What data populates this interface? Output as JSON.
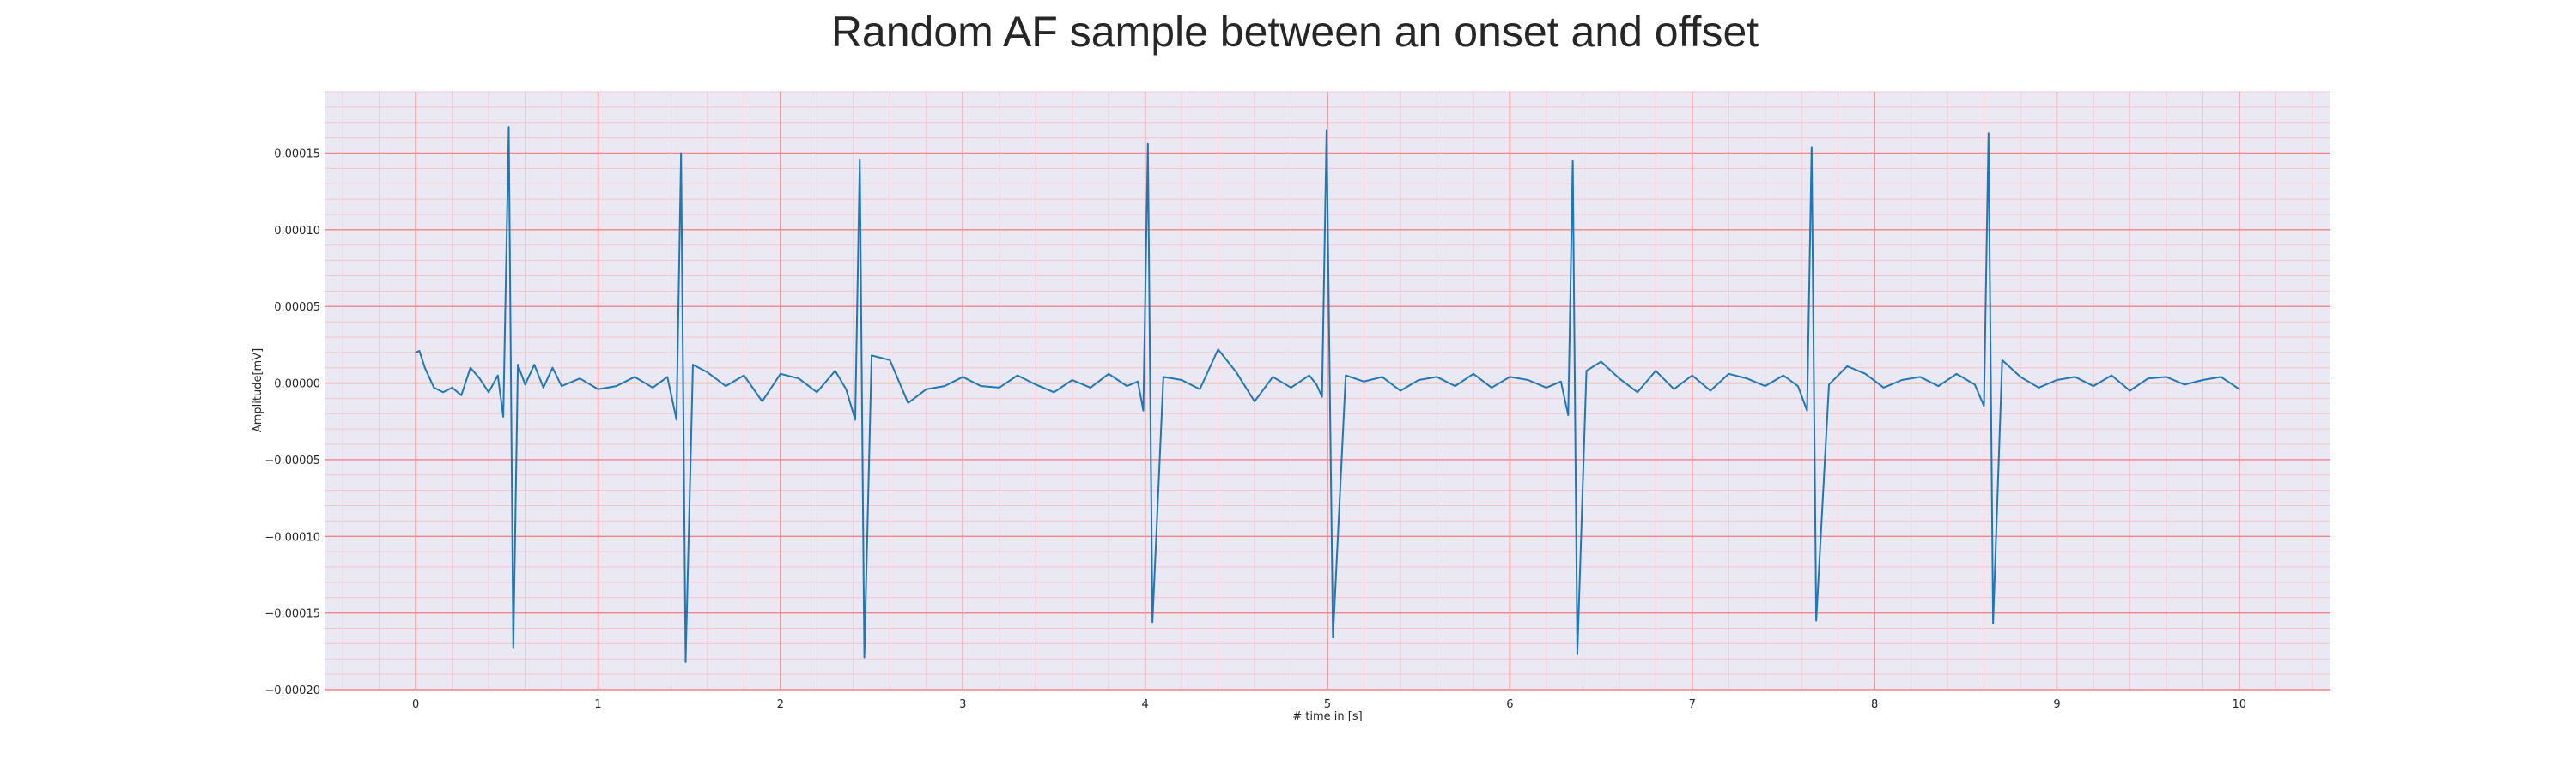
{
  "chart_data": {
    "type": "line",
    "title": "Random AF sample between an onset and offset",
    "xlabel": "# time in [s]",
    "ylabel": "Amplitude[mV]",
    "xlim": [
      -0.5,
      10.5
    ],
    "ylim": [
      -0.0002,
      0.00019
    ],
    "x_ticks": [
      0,
      1,
      2,
      3,
      4,
      5,
      6,
      7,
      8,
      9,
      10
    ],
    "x_tick_labels": [
      "0",
      "1",
      "2",
      "3",
      "4",
      "5",
      "6",
      "7",
      "8",
      "9",
      "10"
    ],
    "y_ticks": [
      -0.0002,
      -0.00015,
      -0.0001,
      -5e-05,
      0,
      5e-05,
      0.0001,
      0.00015
    ],
    "y_tick_labels": [
      "−0.00020",
      "−0.00015",
      "−0.00010",
      "−0.00005",
      "0.00000",
      "0.00005",
      "0.00010",
      "0.00015"
    ],
    "grid": true,
    "minor_grid": true,
    "colors": {
      "background": "#eae9f3",
      "major_grid": "#f08585",
      "minor_grid": "#f4c4cc",
      "line": "#1f77b4"
    },
    "series": [
      {
        "x": [
          0,
          0.02,
          0.05,
          0.1,
          0.15,
          0.2,
          0.25,
          0.3,
          0.35,
          0.4,
          0.45,
          0.48,
          0.51,
          0.535,
          0.56,
          0.6,
          0.65,
          0.7,
          0.75,
          0.8,
          0.9,
          1.0,
          1.1,
          1.2,
          1.3,
          1.38,
          1.43,
          1.455,
          1.48,
          1.52,
          1.6,
          1.7,
          1.8,
          1.9,
          2.0,
          2.1,
          2.2,
          2.3,
          2.36,
          2.41,
          2.435,
          2.46,
          2.5,
          2.6,
          2.7,
          2.8,
          2.9,
          3.0,
          3.1,
          3.2,
          3.3,
          3.4,
          3.5,
          3.6,
          3.7,
          3.8,
          3.9,
          3.96,
          3.99,
          4.015,
          4.04,
          4.1,
          4.2,
          4.3,
          4.4,
          4.5,
          4.6,
          4.7,
          4.8,
          4.9,
          4.94,
          4.97,
          4.995,
          5.03,
          5.1,
          5.2,
          5.3,
          5.4,
          5.5,
          5.6,
          5.7,
          5.8,
          5.9,
          6.0,
          6.1,
          6.2,
          6.28,
          6.32,
          6.345,
          6.37,
          6.42,
          6.5,
          6.6,
          6.7,
          6.8,
          6.9,
          7.0,
          7.1,
          7.2,
          7.3,
          7.4,
          7.5,
          7.58,
          7.63,
          7.655,
          7.68,
          7.75,
          7.85,
          7.95,
          8.05,
          8.15,
          8.25,
          8.35,
          8.45,
          8.55,
          8.6,
          8.625,
          8.65,
          8.7,
          8.8,
          8.9,
          9.0,
          9.1,
          9.2,
          9.3,
          9.4,
          9.5,
          9.6,
          9.7,
          9.8,
          9.9,
          10.0
        ],
        "y": [
          2e-05,
          2.1e-05,
          1e-05,
          -3e-06,
          -6e-06,
          -3e-06,
          -8e-06,
          1e-05,
          3e-06,
          -6e-06,
          5e-06,
          -2.2e-05,
          0.000167,
          -0.000173,
          1.2e-05,
          -1e-06,
          1.2e-05,
          -3e-06,
          1e-05,
          -2e-06,
          3e-06,
          -4e-06,
          -2e-06,
          4e-06,
          -3e-06,
          4e-06,
          -2.4e-05,
          0.00015,
          -0.000182,
          1.2e-05,
          7e-06,
          -2e-06,
          5e-06,
          -1.2e-05,
          6e-06,
          3e-06,
          -6e-06,
          8e-06,
          -4e-06,
          -2.4e-05,
          0.000146,
          -0.000179,
          1.8e-05,
          1.5e-05,
          -1.3e-05,
          -4e-06,
          -2e-06,
          4e-06,
          -2e-06,
          -3e-06,
          5e-06,
          -1e-06,
          -6e-06,
          2e-06,
          -3e-06,
          6e-06,
          -2e-06,
          1e-06,
          -1.8e-05,
          0.000156,
          -0.000156,
          4e-06,
          2e-06,
          -4e-06,
          2.2e-05,
          7e-06,
          -1.2e-05,
          4e-06,
          -3e-06,
          5e-06,
          -1e-06,
          -9e-06,
          0.000165,
          -0.000166,
          5e-06,
          1e-06,
          4e-06,
          -5e-06,
          2e-06,
          4e-06,
          -2e-06,
          6e-06,
          -3e-06,
          4e-06,
          2e-06,
          -3e-06,
          1e-06,
          -2.1e-05,
          0.000145,
          -0.000177,
          8e-06,
          1.4e-05,
          3e-06,
          -6e-06,
          8e-06,
          -4e-06,
          5e-06,
          -5e-06,
          6e-06,
          3e-06,
          -2e-06,
          5e-06,
          -2e-06,
          -1.8e-05,
          0.000154,
          -0.000155,
          -1e-06,
          1.1e-05,
          6e-06,
          -3e-06,
          2e-06,
          4e-06,
          -2e-06,
          6e-06,
          -1e-06,
          -1.5e-05,
          0.000163,
          -0.000157,
          1.5e-05,
          4e-06,
          -3e-06,
          2e-06,
          4e-06,
          -2e-06,
          5e-06,
          -5e-06,
          3e-06,
          4e-06,
          -1e-06,
          2e-06,
          4e-06,
          -4e-06
        ]
      }
    ]
  }
}
